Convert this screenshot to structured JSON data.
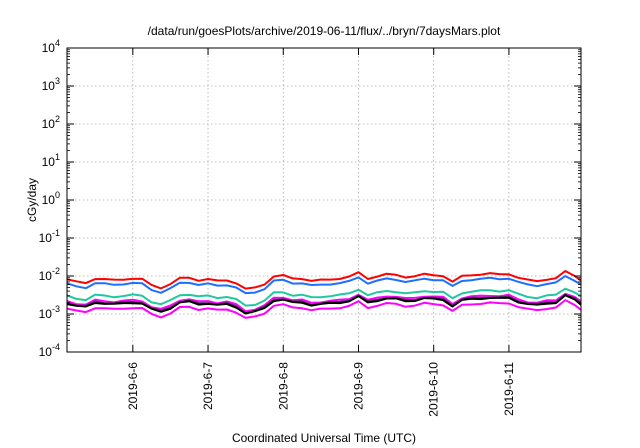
{
  "chart_data": {
    "type": "line",
    "title": "/data/run/goesPlots/archive/2019-06-11/flux/../bryn/7daysMars.plot",
    "xlabel": "Coordinated Universal Time (UTC)",
    "ylabel": "cGy/day",
    "yscale": "log",
    "ylim": [
      0.0001,
      10000
    ],
    "y_ticks": [
      {
        "base": "10",
        "exp": "-4"
      },
      {
        "base": "10",
        "exp": "-3"
      },
      {
        "base": "10",
        "exp": "-2"
      },
      {
        "base": "10",
        "exp": "-1"
      },
      {
        "base": "10",
        "exp": "0"
      },
      {
        "base": "10",
        "exp": "1"
      },
      {
        "base": "10",
        "exp": "2"
      },
      {
        "base": "10",
        "exp": "3"
      },
      {
        "base": "10",
        "exp": "4"
      }
    ],
    "xlim": [
      "2019-06-05T03:00",
      "2019-06-11T23:00"
    ],
    "x_ticks": [
      "2019-6-6",
      "2019-6-7",
      "2019-6-8",
      "2019-6-9",
      "2019-6-10",
      "2019-6-11"
    ],
    "grid": true,
    "legend": "none",
    "series": [
      {
        "color": "#ff0000",
        "base": 0.0082
      },
      {
        "color": "#1f6fff",
        "base": 0.0062
      },
      {
        "color": "#20c8a0",
        "base": 0.003
      },
      {
        "color": "#ff00ff",
        "base": 0.0022
      },
      {
        "color": "#5a2a6a",
        "base": 0.002
      },
      {
        "color": "#000000",
        "base": 0.0019
      },
      {
        "color": "#ff00ff",
        "base": 0.0014
      }
    ],
    "x": [
      "06-05 03",
      "06-05 06",
      "06-05 09",
      "06-05 12",
      "06-05 15",
      "06-05 18",
      "06-05 21",
      "06-06 00",
      "06-06 03",
      "06-06 06",
      "06-06 09",
      "06-06 12",
      "06-06 15",
      "06-06 18",
      "06-06 21",
      "06-07 00",
      "06-07 03",
      "06-07 06",
      "06-07 09",
      "06-07 12",
      "06-07 15",
      "06-07 18",
      "06-07 21",
      "06-08 00",
      "06-08 03",
      "06-08 06",
      "06-08 09",
      "06-08 12",
      "06-08 15",
      "06-08 18",
      "06-08 21",
      "06-09 00",
      "06-09 03",
      "06-09 06",
      "06-09 09",
      "06-09 12",
      "06-09 15",
      "06-09 18",
      "06-09 21",
      "06-10 00",
      "06-10 03",
      "06-10 06",
      "06-10 09",
      "06-10 12",
      "06-10 15",
      "06-10 18",
      "06-10 21",
      "06-11 00",
      "06-11 03",
      "06-11 06",
      "06-11 09",
      "06-11 12",
      "06-11 15",
      "06-11 18",
      "06-11 21",
      "06-11 23"
    ],
    "factors": [
      1.0,
      0.85,
      0.8,
      1.05,
      1.0,
      0.95,
      1.0,
      1.05,
      1.0,
      0.7,
      0.6,
      0.75,
      1.05,
      1.1,
      0.95,
      1.0,
      0.9,
      0.95,
      0.8,
      0.55,
      0.6,
      0.75,
      1.2,
      1.25,
      1.05,
      1.05,
      0.9,
      0.95,
      1.0,
      1.05,
      1.15,
      1.5,
      1.05,
      1.2,
      1.35,
      1.3,
      1.15,
      1.2,
      1.35,
      1.3,
      1.25,
      0.85,
      1.2,
      1.3,
      1.35,
      1.4,
      1.35,
      1.4,
      1.1,
      0.95,
      0.9,
      1.0,
      1.05,
      1.6,
      1.25,
      0.95
    ]
  }
}
